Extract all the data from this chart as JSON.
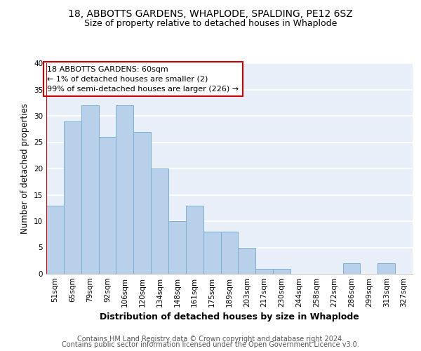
{
  "title1": "18, ABBOTTS GARDENS, WHAPLODE, SPALDING, PE12 6SZ",
  "title2": "Size of property relative to detached houses in Whaplode",
  "xlabel": "Distribution of detached houses by size in Whaplode",
  "ylabel": "Number of detached properties",
  "categories": [
    "51sqm",
    "65sqm",
    "79sqm",
    "92sqm",
    "106sqm",
    "120sqm",
    "134sqm",
    "148sqm",
    "161sqm",
    "175sqm",
    "189sqm",
    "203sqm",
    "217sqm",
    "230sqm",
    "244sqm",
    "258sqm",
    "272sqm",
    "286sqm",
    "299sqm",
    "313sqm",
    "327sqm"
  ],
  "values": [
    13,
    29,
    32,
    26,
    32,
    27,
    20,
    10,
    13,
    8,
    8,
    5,
    1,
    1,
    0,
    0,
    0,
    2,
    0,
    2,
    0
  ],
  "bar_color": "#b8d0ea",
  "bar_edge_color": "#7aafd4",
  "annotation_text": "18 ABBOTTS GARDENS: 60sqm\n← 1% of detached houses are smaller (2)\n99% of semi-detached houses are larger (226) →",
  "annotation_color": "#cc0000",
  "ylim": [
    0,
    40
  ],
  "yticks": [
    0,
    5,
    10,
    15,
    20,
    25,
    30,
    35,
    40
  ],
  "footer1": "Contains HM Land Registry data © Crown copyright and database right 2024.",
  "footer2": "Contains public sector information licensed under the Open Government Licence v3.0.",
  "background_color": "#e8eff8",
  "grid_color": "#ffffff",
  "title1_fontsize": 10,
  "title2_fontsize": 9,
  "axis_label_fontsize": 8.5,
  "tick_fontsize": 7.5,
  "annotation_fontsize": 8,
  "footer_fontsize": 7
}
